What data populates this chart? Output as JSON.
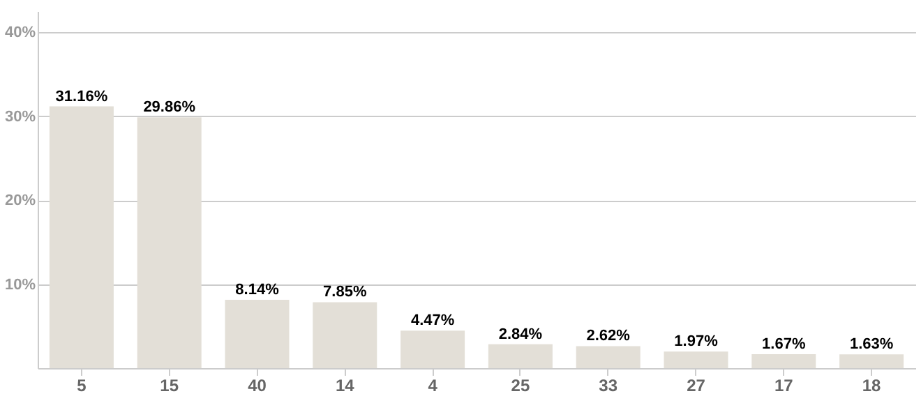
{
  "chart_data": {
    "type": "bar",
    "categories": [
      "5",
      "15",
      "40",
      "14",
      "4",
      "25",
      "33",
      "27",
      "17",
      "18"
    ],
    "values": [
      31.16,
      29.86,
      8.14,
      7.85,
      4.47,
      2.84,
      2.62,
      1.97,
      1.67,
      1.63
    ],
    "value_labels": [
      "31.16%",
      "29.86%",
      "8.14%",
      "7.85%",
      "4.47%",
      "2.84%",
      "2.62%",
      "1.97%",
      "1.67%",
      "1.63%"
    ],
    "color": "#e3dfd7",
    "ylim": [
      0,
      42.5
    ],
    "yticks": [
      {
        "value": 0,
        "label": null
      },
      {
        "value": 10,
        "label": "10%"
      },
      {
        "value": 20,
        "label": "20%"
      },
      {
        "value": 30,
        "label": "30%"
      },
      {
        "value": 40,
        "label": "40%"
      }
    ],
    "grid": "y"
  }
}
